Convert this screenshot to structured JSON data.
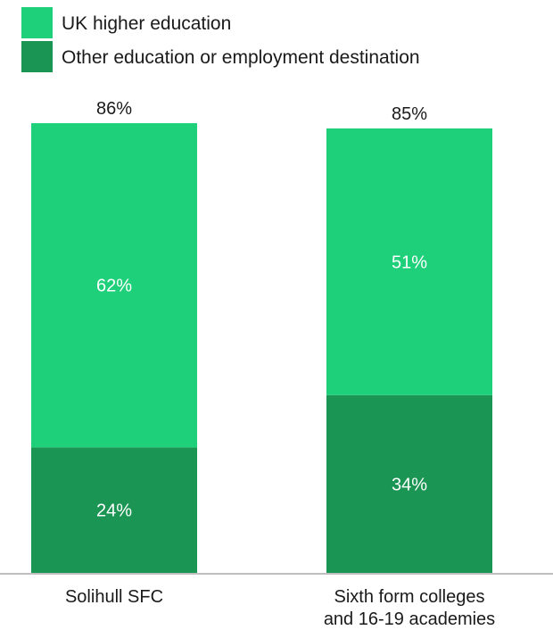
{
  "chart_data": {
    "type": "bar",
    "stacked": true,
    "categories": [
      [
        "Solihull SFC"
      ],
      [
        "Sixth form colleges",
        "and 16-19 academies"
      ]
    ],
    "series": [
      {
        "name": "Other education or employment destination",
        "values": [
          24,
          34
        ],
        "labels": [
          "24%",
          "34%"
        ],
        "color": "#1b9553"
      },
      {
        "name": "UK higher education",
        "values": [
          62,
          51
        ],
        "labels": [
          "62%",
          "51%"
        ],
        "color": "#1fd07a"
      }
    ],
    "totals": [
      86,
      85
    ],
    "total_labels": [
      "86%",
      "85%"
    ],
    "legend_order": [
      1,
      0
    ],
    "legend_position": "top-left",
    "ylim": [
      0,
      100
    ],
    "grid": false
  }
}
